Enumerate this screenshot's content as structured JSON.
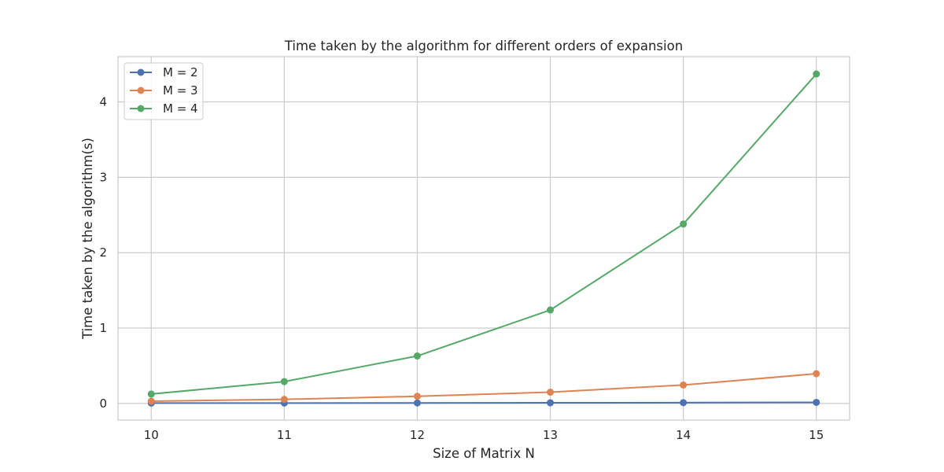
{
  "chart_data": {
    "type": "line",
    "title": "Time taken by the algorithm for different orders of expansion",
    "xlabel": "Size of Matrix N",
    "ylabel": "Time taken by the algorithm(s)",
    "x": [
      10,
      11,
      12,
      13,
      14,
      15
    ],
    "x_ticks": [
      "10",
      "11",
      "12",
      "13",
      "14",
      "15"
    ],
    "y_ticks": [
      "0",
      "1",
      "2",
      "3",
      "4"
    ],
    "xlim": [
      9.75,
      15.25
    ],
    "ylim": [
      -0.22,
      4.6
    ],
    "grid": true,
    "legend_position": "top-left",
    "series": [
      {
        "name": "M = 2",
        "color": "#4c72b0",
        "values": [
          0.005,
          0.006,
          0.007,
          0.009,
          0.011,
          0.015
        ]
      },
      {
        "name": "M = 3",
        "color": "#dd8452",
        "values": [
          0.03,
          0.055,
          0.095,
          0.15,
          0.245,
          0.395
        ]
      },
      {
        "name": "M = 4",
        "color": "#55a868",
        "values": [
          0.125,
          0.29,
          0.63,
          1.24,
          2.38,
          4.37
        ]
      }
    ]
  }
}
